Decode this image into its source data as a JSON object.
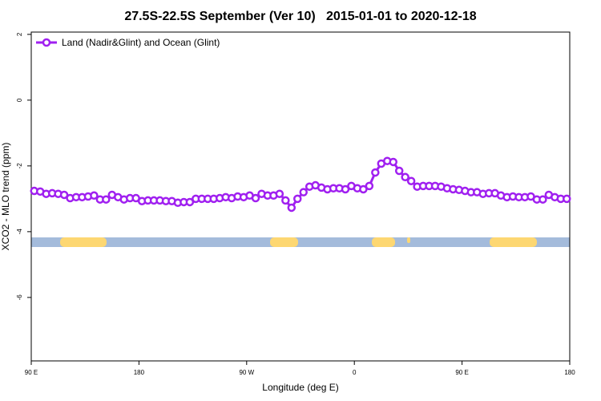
{
  "chart_data": {
    "type": "line",
    "title": "27.5S-22.5S September (Ver 10)   2015-01-01 to 2020-12-18",
    "x_label": "Longitude (deg E)",
    "y_label": "XCO2 - MLO trend (ppm)",
    "xlim": [
      90,
      540
    ],
    "ylim": [
      -7.93,
      2.07
    ],
    "xticks": [
      {
        "value": 90,
        "label": "90 E"
      },
      {
        "value": 180,
        "label": "180"
      },
      {
        "value": 270,
        "label": "90 W"
      },
      {
        "value": 360,
        "label": "0"
      },
      {
        "value": 450,
        "label": "90 E"
      },
      {
        "value": 540,
        "label": "180"
      }
    ],
    "yticks": [
      2,
      0,
      -2,
      -4,
      -6
    ],
    "legend": "top-left",
    "x": [
      92.5,
      97.5,
      102.5,
      107.5,
      112.5,
      117.5,
      122.5,
      127.5,
      132.5,
      137.5,
      142.5,
      147.5,
      152.5,
      157.5,
      162.5,
      167.5,
      172.5,
      177.5,
      182.5,
      187.5,
      192.5,
      197.5,
      202.5,
      207.5,
      212.5,
      217.5,
      222.5,
      227.5,
      232.5,
      237.5,
      242.5,
      247.5,
      252.5,
      257.5,
      262.5,
      267.5,
      272.5,
      277.5,
      282.5,
      287.5,
      292.5,
      297.5,
      302.5,
      307.5,
      312.5,
      317.5,
      322.5,
      327.5,
      332.5,
      337.5,
      342.5,
      347.5,
      352.5,
      357.5,
      362.5,
      367.5,
      372.5,
      377.5,
      382.5,
      387.5,
      392.5,
      397.5,
      402.5,
      407.5,
      412.5,
      417.5,
      422.5,
      427.5,
      432.5,
      437.5,
      442.5,
      447.5,
      452.5,
      457.5,
      462.5,
      467.5,
      472.5,
      477.5,
      482.5,
      487.5,
      492.5,
      497.5,
      502.5,
      507.5,
      512.5,
      517.5,
      522.5,
      527.5,
      532.5,
      537.5
    ],
    "series": [
      {
        "name": "Land (Nadir&Glint) and Ocean (Glint)",
        "color": "#a020f0",
        "values": [
          -2.76,
          -2.78,
          -2.85,
          -2.83,
          -2.85,
          -2.88,
          -2.98,
          -2.95,
          -2.95,
          -2.93,
          -2.9,
          -3.02,
          -3.02,
          -2.88,
          -2.95,
          -3.02,
          -2.98,
          -2.98,
          -3.07,
          -3.05,
          -3.05,
          -3.05,
          -3.07,
          -3.07,
          -3.12,
          -3.1,
          -3.1,
          -3.0,
          -3.0,
          -3.0,
          -3.0,
          -2.98,
          -2.95,
          -2.98,
          -2.93,
          -2.95,
          -2.9,
          -2.98,
          -2.85,
          -2.9,
          -2.9,
          -2.85,
          -3.05,
          -3.27,
          -3.0,
          -2.8,
          -2.63,
          -2.59,
          -2.66,
          -2.71,
          -2.68,
          -2.68,
          -2.71,
          -2.61,
          -2.68,
          -2.71,
          -2.61,
          -2.2,
          -1.93,
          -1.85,
          -1.88,
          -2.15,
          -2.34,
          -2.46,
          -2.63,
          -2.61,
          -2.61,
          -2.61,
          -2.63,
          -2.68,
          -2.71,
          -2.73,
          -2.76,
          -2.8,
          -2.8,
          -2.85,
          -2.83,
          -2.83,
          -2.9,
          -2.95,
          -2.93,
          -2.95,
          -2.95,
          -2.93,
          -3.02,
          -3.02,
          -2.88,
          -2.95,
          -3.0,
          -3.0
        ]
      }
    ]
  }
}
